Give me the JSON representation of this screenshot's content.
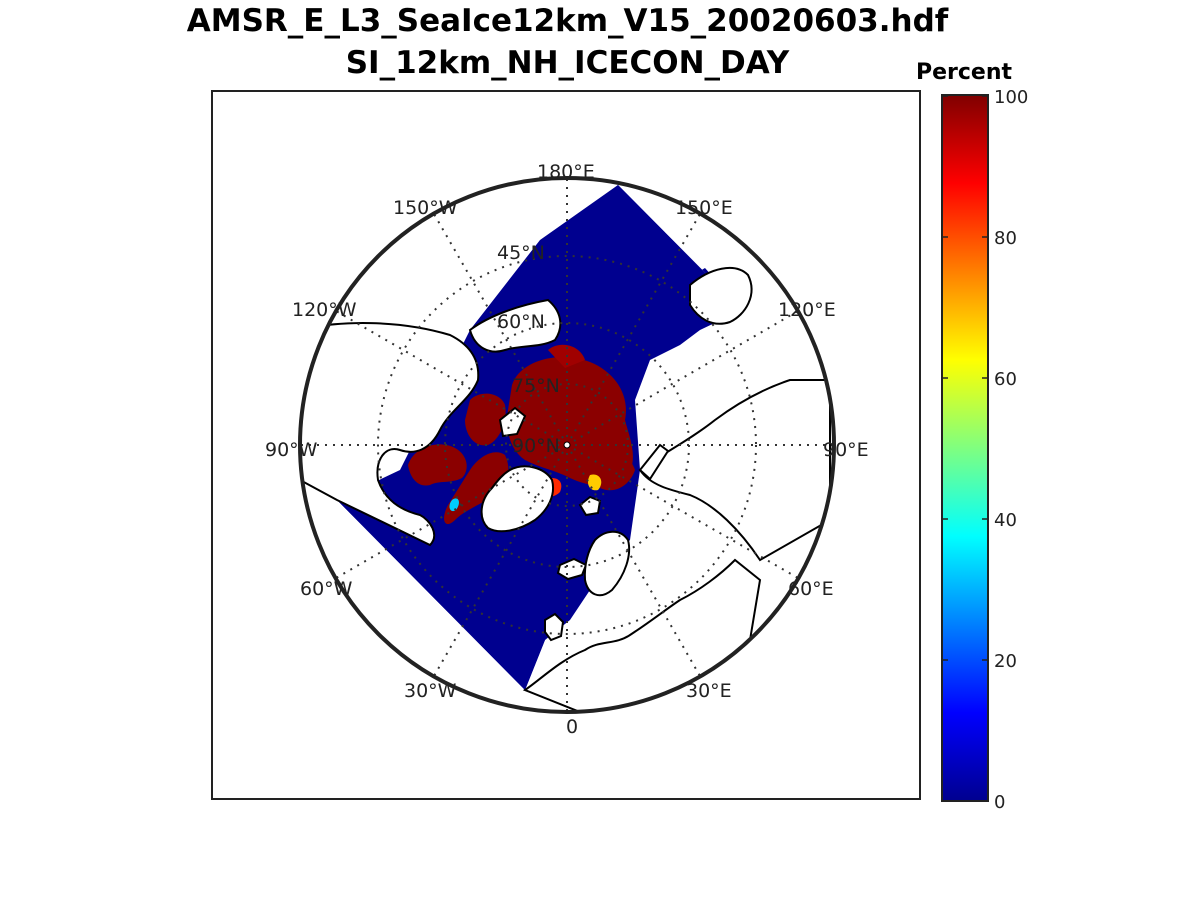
{
  "title": {
    "line1": "AMSR_E_L3_SeaIce12km_V15_20020603.hdf",
    "line2": "SI_12km_NH_ICECON_DAY"
  },
  "colorbar": {
    "label": "Percent",
    "ticks": [
      "0",
      "20",
      "40",
      "60",
      "80",
      "100"
    ],
    "range": [
      0,
      100
    ],
    "colormap": "jet"
  },
  "map": {
    "projection": "north-polar-stereographic",
    "meridian_labels": [
      "180°E",
      "150°E",
      "120°E",
      "90°E",
      "60°E",
      "30°E",
      "0",
      "30°W",
      "60°W",
      "90°W",
      "120°W",
      "150°W"
    ],
    "parallel_labels": [
      "45°N",
      "60°N",
      "75°N",
      "90°N"
    ],
    "grid": "dotted",
    "colors": {
      "open_ocean": "#00008f",
      "ice": "#8b0000",
      "land": "#ffffff",
      "coastline": "#000000"
    }
  }
}
